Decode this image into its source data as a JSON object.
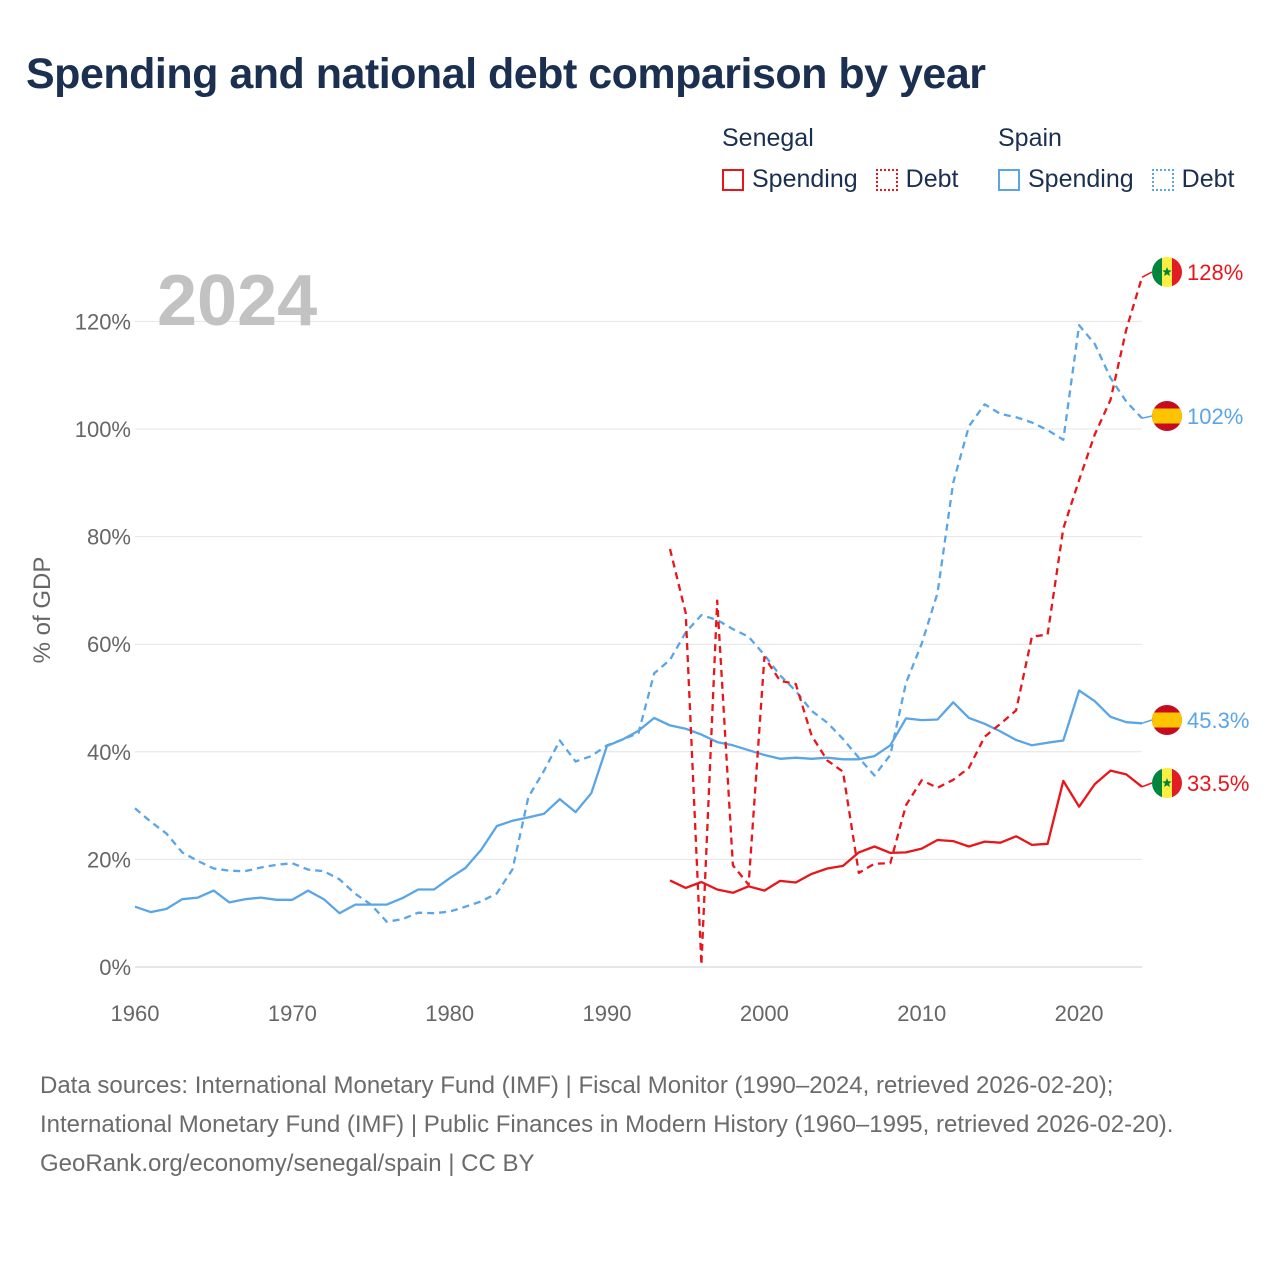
{
  "title": "Spending and national debt comparison by year",
  "legend": {
    "groups": [
      {
        "name": "Senegal",
        "items": [
          {
            "label": "Spending",
            "style": "solid",
            "color": "#e8161b"
          },
          {
            "label": "Debt",
            "style": "dotted",
            "color": "#e8161b"
          }
        ]
      },
      {
        "name": "Spain",
        "items": [
          {
            "label": "Spending",
            "style": "solid",
            "color": "#5aa5e6"
          },
          {
            "label": "Debt",
            "style": "dotted",
            "color": "#5aa5e6"
          }
        ]
      }
    ]
  },
  "chart_data": {
    "type": "line",
    "year_label": "2024",
    "ylabel": "% of GDP",
    "xlim": [
      1960,
      2024
    ],
    "ylim": [
      0,
      130
    ],
    "x_ticks": [
      1960,
      1970,
      1980,
      1990,
      2000,
      2010,
      2020
    ],
    "y_ticks": [
      0,
      20,
      40,
      60,
      80,
      100,
      120
    ],
    "y_tick_labels": [
      "0%",
      "20%",
      "40%",
      "60%",
      "80%",
      "100%",
      "120%"
    ],
    "series": [
      {
        "name": "Spain Spending",
        "country": "Spain",
        "metric": "Spending",
        "color": "#5aa5e6",
        "dash": "solid",
        "x": [
          1960,
          1961,
          1962,
          1963,
          1964,
          1965,
          1966,
          1967,
          1968,
          1969,
          1970,
          1971,
          1972,
          1973,
          1974,
          1975,
          1976,
          1977,
          1978,
          1979,
          1980,
          1981,
          1982,
          1983,
          1984,
          1985,
          1986,
          1987,
          1988,
          1989,
          1990,
          1991,
          1992,
          1993,
          1994,
          1995,
          1996,
          1997,
          1998,
          1999,
          2000,
          2001,
          2002,
          2003,
          2004,
          2005,
          2006,
          2007,
          2008,
          2009,
          2010,
          2011,
          2012,
          2013,
          2014,
          2015,
          2016,
          2017,
          2018,
          2019,
          2020,
          2021,
          2022,
          2023,
          2024
        ],
        "values": [
          11.2,
          10.2,
          10.8,
          12.6,
          12.9,
          14.2,
          12.0,
          12.6,
          12.9,
          12.5,
          12.5,
          14.2,
          12.6,
          10.0,
          11.6,
          11.6,
          11.6,
          12.8,
          14.4,
          14.4,
          16.5,
          18.4,
          21.8,
          26.2,
          27.2,
          27.8,
          28.5,
          31.2,
          28.8,
          32.3,
          41.1,
          42.3,
          43.9,
          46.3,
          44.9,
          44.3,
          43.2,
          41.8,
          41.2,
          40.3,
          39.4,
          38.7,
          38.9,
          38.7,
          38.9,
          38.6,
          38.6,
          39.2,
          41.2,
          46.2,
          45.9,
          46.0,
          49.2,
          46.3,
          45.2,
          43.8,
          42.2,
          41.2,
          41.7,
          42.1,
          51.4,
          49.4,
          46.5,
          45.5,
          45.3
        ],
        "end_label": "45.3%"
      },
      {
        "name": "Spain Debt",
        "country": "Spain",
        "metric": "Debt",
        "color": "#5aa5e6",
        "dash": "dashed",
        "x": [
          1960,
          1961,
          1962,
          1963,
          1964,
          1965,
          1966,
          1967,
          1968,
          1969,
          1970,
          1971,
          1972,
          1973,
          1974,
          1975,
          1976,
          1977,
          1978,
          1979,
          1980,
          1981,
          1982,
          1983,
          1984,
          1985,
          1986,
          1987,
          1988,
          1989,
          1990,
          1991,
          1992,
          1993,
          1994,
          1995,
          1996,
          1997,
          1998,
          1999,
          2000,
          2001,
          2002,
          2003,
          2004,
          2005,
          2006,
          2007,
          2008,
          2009,
          2010,
          2011,
          2012,
          2013,
          2014,
          2015,
          2016,
          2017,
          2018,
          2019,
          2020,
          2021,
          2022,
          2023,
          2024
        ],
        "values": [
          29.5,
          27.0,
          24.8,
          21.3,
          19.7,
          18.3,
          17.9,
          17.8,
          18.5,
          19.0,
          19.3,
          18.1,
          17.8,
          16.3,
          13.6,
          11.6,
          8.4,
          8.9,
          10.1,
          10.0,
          10.3,
          11.2,
          12.2,
          13.7,
          18.2,
          31.6,
          36.5,
          42.1,
          38.2,
          39.2,
          41.2,
          42.3,
          43.5,
          54.6,
          57.1,
          62.2,
          65.4,
          64.5,
          62.8,
          61.4,
          58.0,
          54.2,
          51.3,
          47.6,
          45.4,
          42.4,
          38.9,
          35.6,
          39.4,
          52.8,
          60.1,
          69.5,
          90.0,
          100.5,
          104.6,
          102.8,
          102.2,
          101.2,
          99.8,
          98.0,
          119.3,
          115.8,
          109.5,
          105.1,
          102.0
        ],
        "end_label": "102%"
      },
      {
        "name": "Senegal Spending",
        "country": "Senegal",
        "metric": "Spending",
        "color": "#e8161b",
        "dash": "solid",
        "x": [
          1994,
          1995,
          1996,
          1997,
          1998,
          1999,
          2000,
          2001,
          2002,
          2003,
          2004,
          2005,
          2006,
          2007,
          2008,
          2009,
          2010,
          2011,
          2012,
          2013,
          2014,
          2015,
          2016,
          2017,
          2018,
          2019,
          2020,
          2021,
          2022,
          2023,
          2024
        ],
        "values": [
          16.1,
          14.7,
          15.8,
          14.4,
          13.8,
          15.0,
          14.2,
          16.0,
          15.7,
          17.3,
          18.3,
          18.8,
          21.3,
          22.4,
          21.2,
          21.3,
          22.0,
          23.6,
          23.4,
          22.4,
          23.3,
          23.1,
          24.3,
          22.7,
          22.9,
          34.6,
          29.8,
          34.0,
          36.5,
          35.8,
          33.5
        ],
        "end_label": "33.5%"
      },
      {
        "name": "Senegal Debt",
        "country": "Senegal",
        "metric": "Debt",
        "color": "#e8161b",
        "dash": "dashed",
        "x": [
          1994,
          1995,
          1996,
          1997,
          1998,
          1999,
          2000,
          2001,
          2002,
          2003,
          2004,
          2005,
          2006,
          2007,
          2008,
          2009,
          2010,
          2011,
          2012,
          2013,
          2014,
          2015,
          2016,
          2017,
          2018,
          2019,
          2020,
          2021,
          2022,
          2023,
          2024
        ],
        "values": [
          77.7,
          65.8,
          0.4,
          68.1,
          18.9,
          15.3,
          57.6,
          53.2,
          52.6,
          43.0,
          38.4,
          36.3,
          17.5,
          19.2,
          19.3,
          30.1,
          34.7,
          33.3,
          34.8,
          37.0,
          42.8,
          45.2,
          47.7,
          61.4,
          61.8,
          81.5,
          90.5,
          99.0,
          105.4,
          118.5,
          128.2
        ],
        "end_label": "128%"
      }
    ]
  },
  "footer": {
    "sources": "Data sources: International Monetary Fund (IMF) | Fiscal Monitor (1990–2024, retrieved 2026-02-20); International Monetary Fund (IMF) | Public Finances in Modern History (1960–1995, retrieved 2026-02-20).",
    "credit": "GeoRank.org/economy/senegal/spain | CC BY"
  }
}
